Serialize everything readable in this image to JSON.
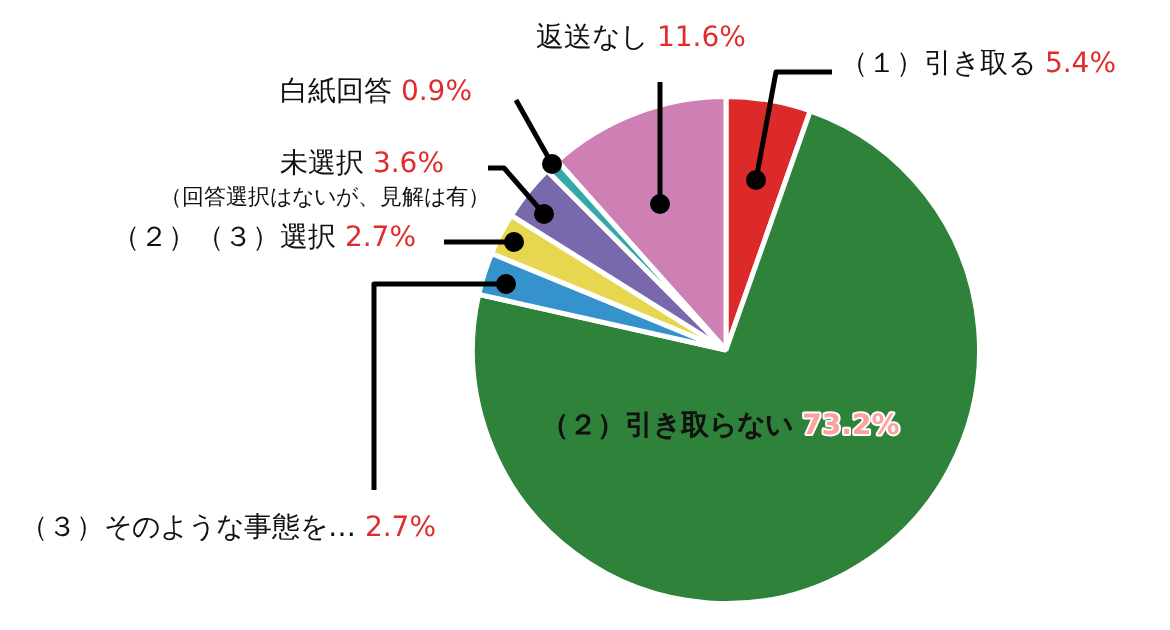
{
  "chart_data": {
    "type": "pie",
    "categories": [
      "（１）引き取る",
      "（２）引き取らない",
      "（３）そのような事態を…",
      "（２）（３）選択",
      "未選択",
      "白紙回答",
      "返送なし"
    ],
    "values": [
      5.4,
      73.2,
      2.7,
      2.7,
      3.6,
      0.9,
      11.6
    ],
    "value_labels": [
      "5.4%",
      "73.2%",
      "2.7%",
      "2.7%",
      "3.6%",
      "0.9%",
      "11.6%"
    ],
    "colors": [
      "#dc2a2a",
      "#2e8239",
      "#3592cc",
      "#e6d650",
      "#7a68ad",
      "#33a8a8",
      "#ce80b4"
    ],
    "annotations": [
      "（回答選択はないが、見解は有）"
    ],
    "legend": false
  }
}
